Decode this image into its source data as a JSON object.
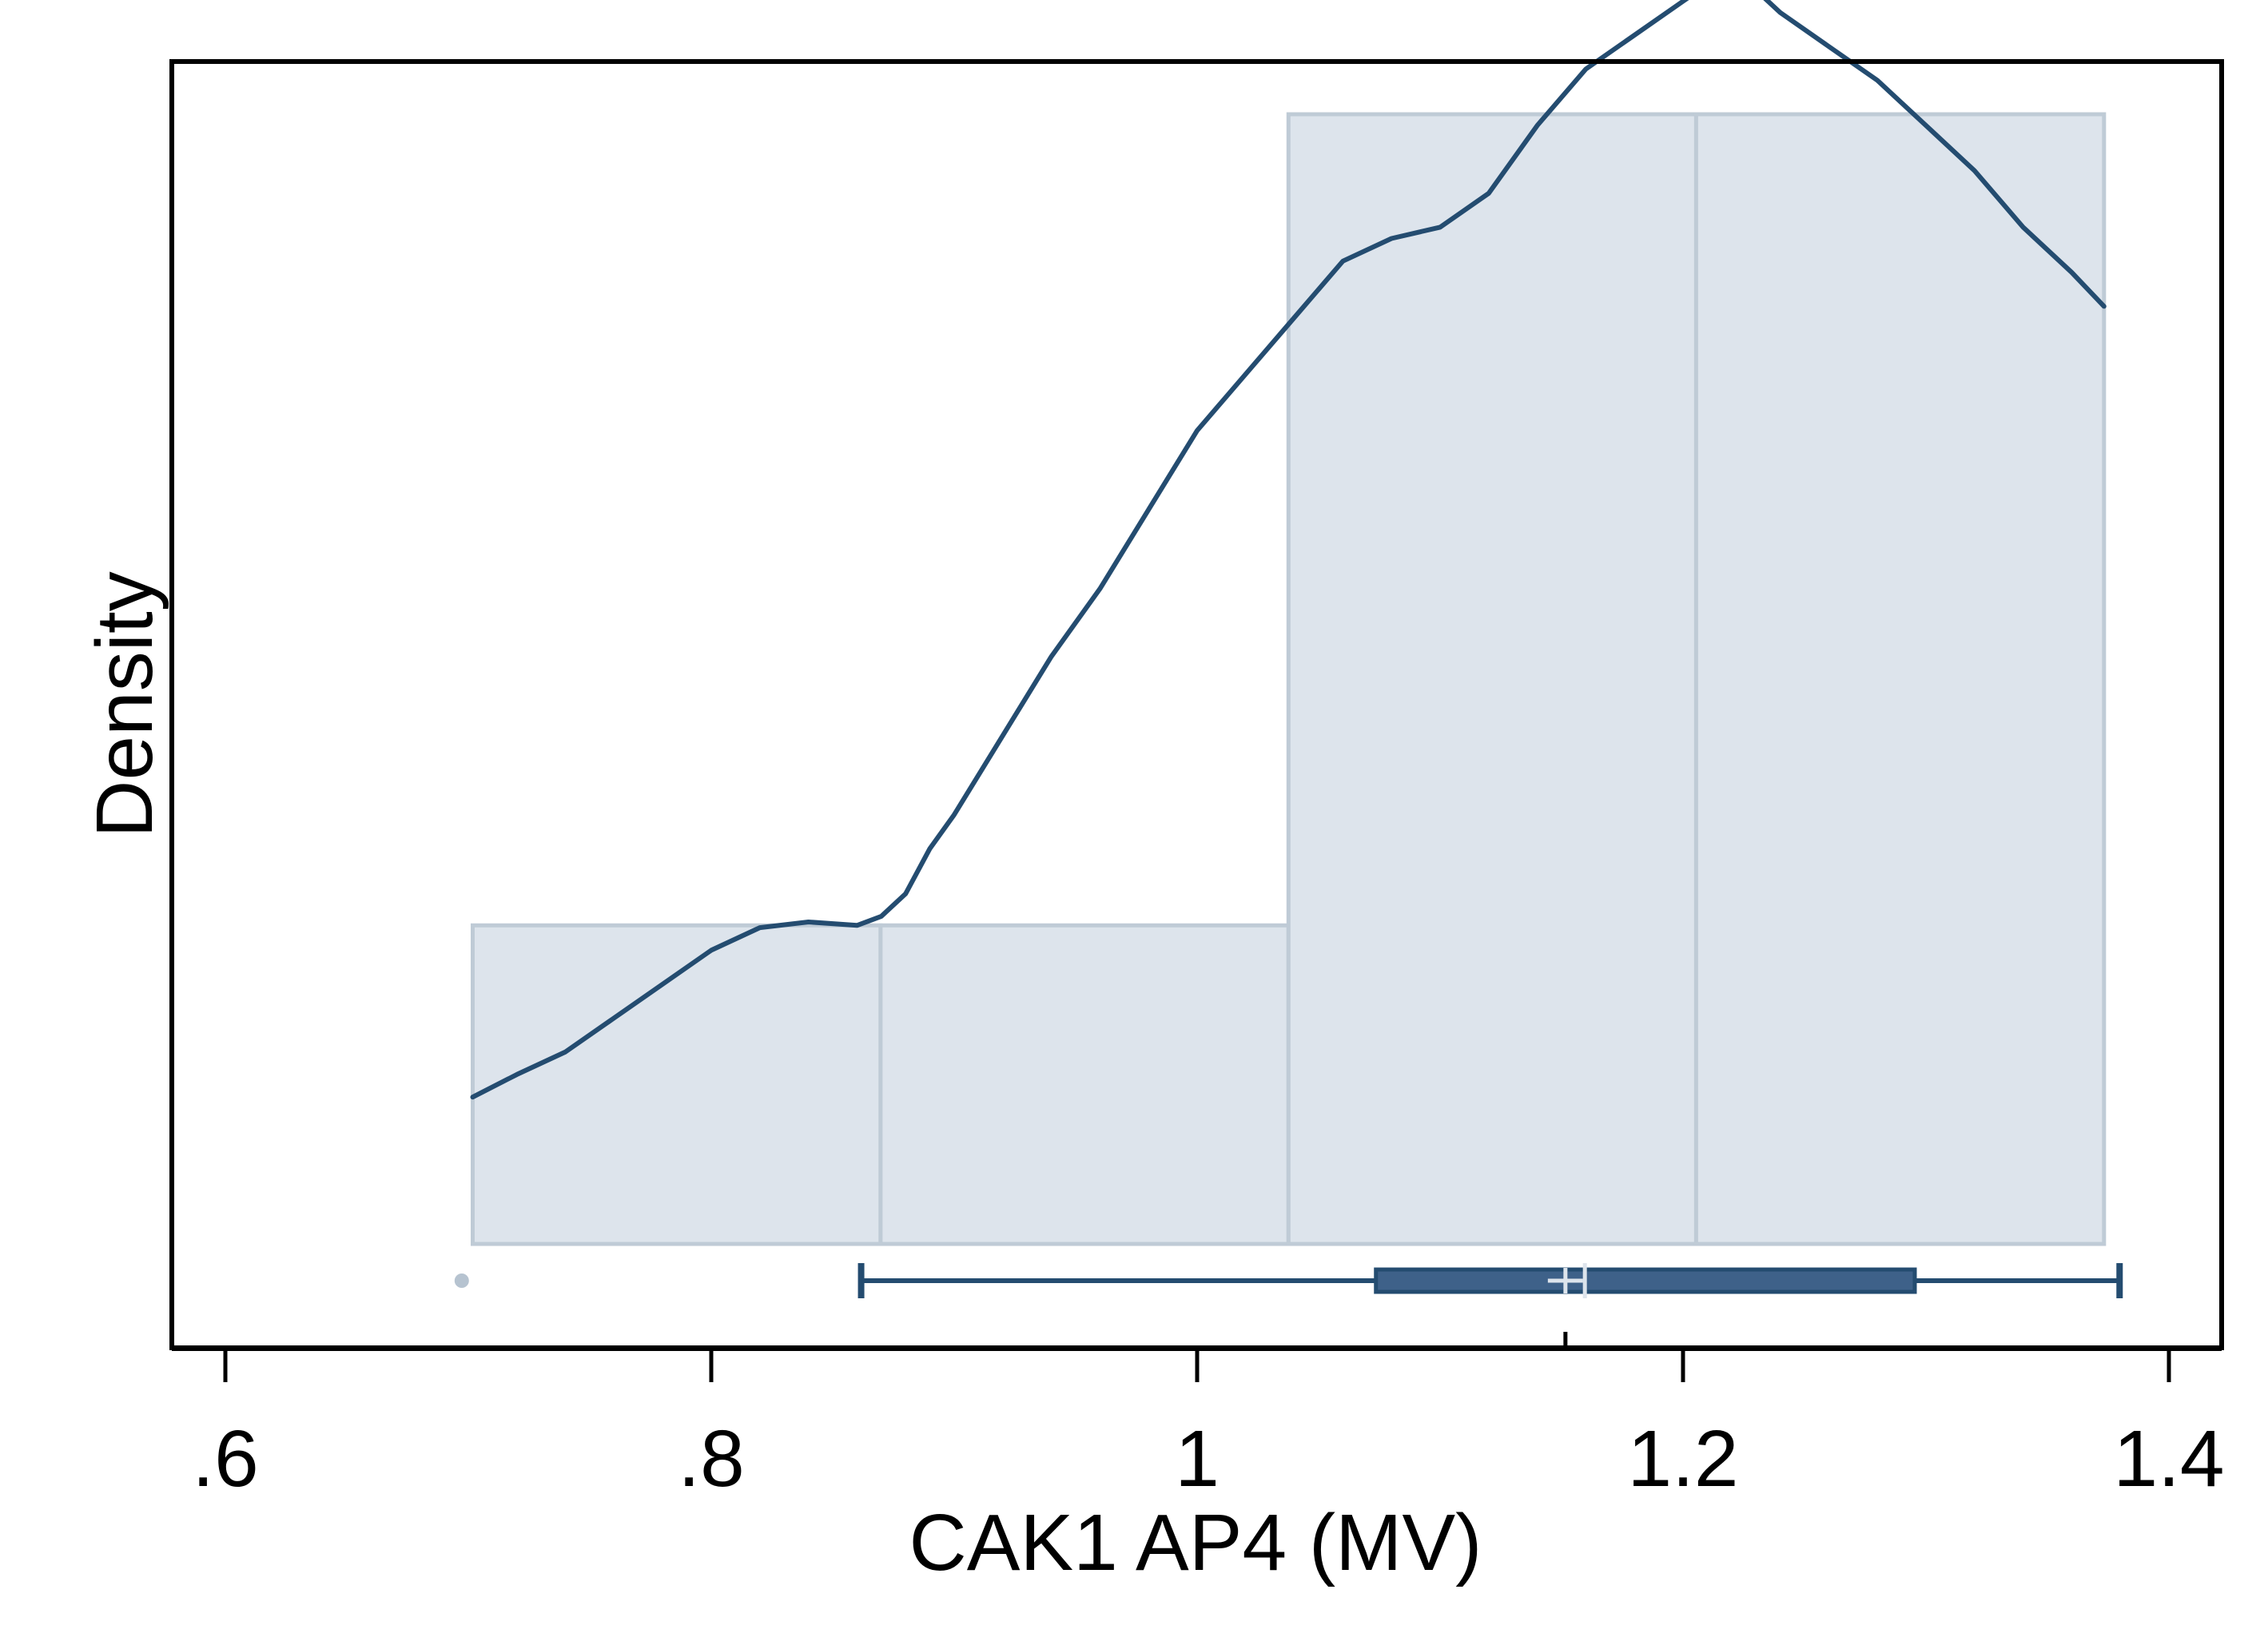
{
  "chart_data": {
    "type": "histogram",
    "xlabel": "CAK1 AP4 (MV)",
    "ylabel": "Density",
    "xlim": [
      0.59,
      1.412
    ],
    "xticks": [
      0.6,
      0.8,
      1.0,
      1.2,
      1.4
    ],
    "xtick_labels": [
      ".6",
      ".8",
      "1",
      "1.2",
      "1.4"
    ],
    "yticks_shown": false,
    "histogram": {
      "bins": [
        {
          "x0": 0.7018,
          "x1": 0.8697,
          "relative_height": 0.282
        },
        {
          "x0": 0.8697,
          "x1": 1.0376,
          "relative_height": 0.282
        },
        {
          "x0": 1.0376,
          "x1": 1.2054,
          "relative_height": 1.0
        },
        {
          "x0": 1.2054,
          "x1": 1.3733,
          "relative_height": 1.0
        }
      ],
      "fill": "#dde4ec",
      "stroke": "#bfcbd6"
    },
    "density_curve": {
      "color": "#244c70",
      "x": [
        0.7018,
        0.72,
        0.74,
        0.76,
        0.78,
        0.8,
        0.82,
        0.84,
        0.86,
        0.87,
        0.88,
        0.89,
        0.9,
        0.92,
        0.94,
        0.96,
        0.98,
        1.0,
        1.02,
        1.04,
        1.06,
        1.08,
        1.1,
        1.12,
        1.14,
        1.16,
        1.18,
        1.2,
        1.22,
        1.24,
        1.26,
        1.28,
        1.3,
        1.32,
        1.34,
        1.36,
        1.3733
      ],
      "relative_density": [
        0.13,
        0.15,
        0.17,
        0.2,
        0.23,
        0.26,
        0.28,
        0.285,
        0.282,
        0.29,
        0.31,
        0.35,
        0.38,
        0.45,
        0.52,
        0.58,
        0.65,
        0.72,
        0.77,
        0.82,
        0.87,
        0.89,
        0.9,
        0.93,
        0.99,
        1.04,
        1.07,
        1.1,
        1.13,
        1.09,
        1.06,
        1.03,
        0.99,
        0.95,
        0.9,
        0.86,
        0.83
      ]
    },
    "boxplot": {
      "min": 0.8617,
      "q1": 1.0736,
      "median": 1.1596,
      "mean": 1.1516,
      "q3": 1.2954,
      "max": 1.3797,
      "outliers": [
        0.6973
      ],
      "color": "#244c70",
      "outlier_color": "#b6c3d0"
    }
  }
}
